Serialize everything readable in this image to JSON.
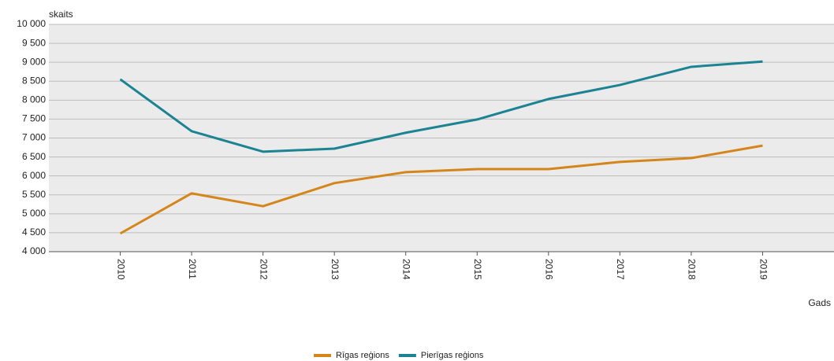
{
  "chart_data": {
    "type": "line",
    "y_label": "skaits",
    "x_label": "Gads",
    "categories": [
      "2010",
      "2011",
      "2012",
      "2013",
      "2014",
      "2015",
      "2016",
      "2017",
      "2018",
      "2019"
    ],
    "series": [
      {
        "name": "Rīgas reģions",
        "color": "#d4861a",
        "values": [
          4480,
          5540,
          5200,
          5810,
          6100,
          6180,
          6180,
          6370,
          6470,
          6800
        ]
      },
      {
        "name": "Pierīgas reģions",
        "color": "#1b8391",
        "values": [
          8550,
          7180,
          6640,
          6720,
          7140,
          7490,
          8030,
          8400,
          8880,
          9020
        ]
      }
    ],
    "ylim": [
      4000,
      10000
    ],
    "yticks": [
      {
        "value": 4000,
        "label": "4 000"
      },
      {
        "value": 4500,
        "label": "4 500"
      },
      {
        "value": 5000,
        "label": "5 000"
      },
      {
        "value": 5500,
        "label": "5 500"
      },
      {
        "value": 6000,
        "label": "6 000"
      },
      {
        "value": 6500,
        "label": "6 500"
      },
      {
        "value": 7000,
        "label": "7 000"
      },
      {
        "value": 7500,
        "label": "7 500"
      },
      {
        "value": 8000,
        "label": "8 000"
      },
      {
        "value": 8500,
        "label": "8 500"
      },
      {
        "value": 9000,
        "label": "9 000"
      },
      {
        "value": 9500,
        "label": "9 500"
      },
      {
        "value": 10000,
        "label": "10 000"
      }
    ],
    "grid": true,
    "legend": "bottom"
  }
}
